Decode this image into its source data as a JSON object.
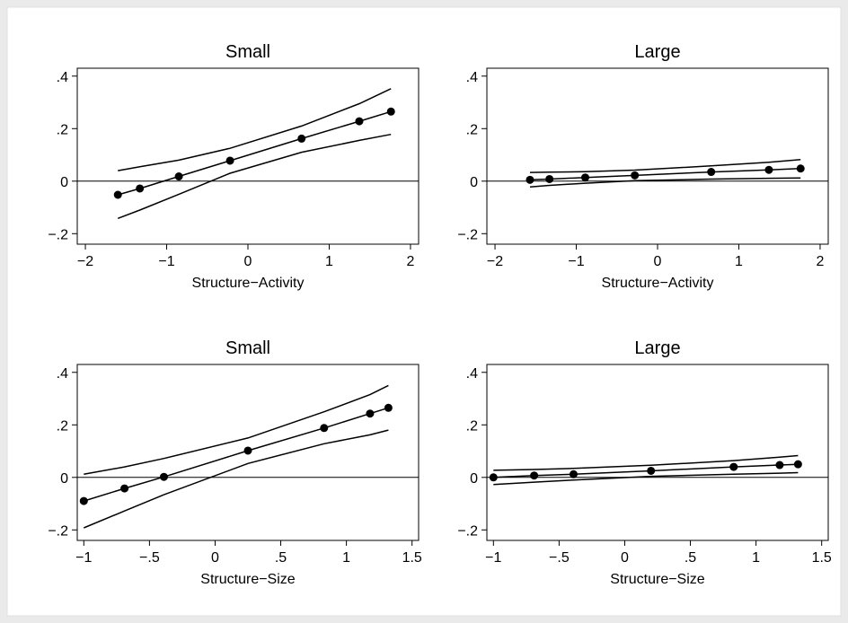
{
  "colors": {
    "figure_background": "#eaeaea",
    "plot_background": "#ffffff",
    "ink": "#000000"
  },
  "chart_data": [
    {
      "type": "line",
      "title": "Small",
      "xlabel": "Structure−Activity",
      "ylabel": "",
      "xlim": [
        -2.1,
        2.1
      ],
      "ylim": [
        -0.24,
        0.43
      ],
      "x_ticks": [
        -2,
        -1,
        0,
        1,
        2
      ],
      "x_tick_labels": [
        "−2",
        "−1",
        "0",
        "1",
        "2"
      ],
      "y_ticks": [
        -0.2,
        0,
        0.2,
        0.4
      ],
      "y_tick_labels": [
        "−.2",
        "0",
        ".2",
        ".4"
      ],
      "reference_line_y": 0,
      "grid": false,
      "series": [
        {
          "role": "estimate",
          "markers": true,
          "x": [
            -1.6,
            -1.33,
            -0.85,
            -0.22,
            0.66,
            1.37,
            1.76
          ],
          "y": [
            -0.052,
            -0.028,
            0.018,
            0.078,
            0.162,
            0.228,
            0.265
          ]
        },
        {
          "role": "upper",
          "markers": false,
          "x": [
            -1.6,
            -1.33,
            -0.85,
            -0.22,
            0.66,
            1.37,
            1.76
          ],
          "y": [
            0.04,
            0.055,
            0.08,
            0.125,
            0.21,
            0.295,
            0.352
          ]
        },
        {
          "role": "lower",
          "markers": false,
          "x": [
            -1.6,
            -1.33,
            -0.85,
            -0.22,
            0.66,
            1.37,
            1.76
          ],
          "y": [
            -0.142,
            -0.11,
            -0.05,
            0.03,
            0.11,
            0.155,
            0.178
          ]
        }
      ]
    },
    {
      "type": "line",
      "title": "Large",
      "xlabel": "Structure−Activity",
      "ylabel": "",
      "xlim": [
        -2.1,
        2.1
      ],
      "ylim": [
        -0.24,
        0.43
      ],
      "x_ticks": [
        -2,
        -1,
        0,
        1,
        2
      ],
      "x_tick_labels": [
        "−2",
        "−1",
        "0",
        "1",
        "2"
      ],
      "y_ticks": [
        -0.2,
        0,
        0.2,
        0.4
      ],
      "y_tick_labels": [
        "−.2",
        "0",
        ".2",
        ".4"
      ],
      "reference_line_y": 0,
      "grid": false,
      "series": [
        {
          "role": "estimate",
          "markers": true,
          "x": [
            -1.57,
            -1.33,
            -0.89,
            -0.28,
            0.66,
            1.37,
            1.76
          ],
          "y": [
            0.005,
            0.008,
            0.014,
            0.022,
            0.035,
            0.043,
            0.048
          ]
        },
        {
          "role": "upper",
          "markers": false,
          "x": [
            -1.57,
            -1.33,
            -0.89,
            -0.28,
            0.66,
            1.37,
            1.76
          ],
          "y": [
            0.033,
            0.034,
            0.036,
            0.042,
            0.058,
            0.072,
            0.082
          ]
        },
        {
          "role": "lower",
          "markers": false,
          "x": [
            -1.57,
            -1.33,
            -0.89,
            -0.28,
            0.66,
            1.37,
            1.76
          ],
          "y": [
            -0.022,
            -0.016,
            -0.008,
            0.002,
            0.008,
            0.011,
            0.012
          ]
        }
      ]
    },
    {
      "type": "line",
      "title": "Small",
      "xlabel": "Structure−Size",
      "ylabel": "",
      "xlim": [
        -1.05,
        1.55
      ],
      "ylim": [
        -0.24,
        0.43
      ],
      "x_ticks": [
        -1,
        -0.5,
        0,
        0.5,
        1,
        1.5
      ],
      "x_tick_labels": [
        "−1",
        "−.5",
        "0",
        ".5",
        "1",
        "1.5"
      ],
      "y_ticks": [
        -0.2,
        0,
        0.2,
        0.4
      ],
      "y_tick_labels": [
        "−.2",
        "0",
        ".2",
        ".4"
      ],
      "reference_line_y": 0,
      "grid": false,
      "series": [
        {
          "role": "estimate",
          "markers": true,
          "x": [
            -1.0,
            -0.69,
            -0.39,
            0.25,
            0.83,
            1.18,
            1.32
          ],
          "y": [
            -0.09,
            -0.042,
            0.002,
            0.102,
            0.188,
            0.243,
            0.265
          ]
        },
        {
          "role": "upper",
          "markers": false,
          "x": [
            -1.0,
            -0.69,
            -0.39,
            0.25,
            0.83,
            1.18,
            1.32
          ],
          "y": [
            0.012,
            0.04,
            0.072,
            0.15,
            0.25,
            0.315,
            0.35
          ]
        },
        {
          "role": "lower",
          "markers": false,
          "x": [
            -1.0,
            -0.69,
            -0.39,
            0.25,
            0.83,
            1.18,
            1.32
          ],
          "y": [
            -0.192,
            -0.128,
            -0.066,
            0.053,
            0.128,
            0.162,
            0.18
          ]
        }
      ]
    },
    {
      "type": "line",
      "title": "Large",
      "xlabel": "Structure−Size",
      "ylabel": "",
      "xlim": [
        -1.05,
        1.55
      ],
      "ylim": [
        -0.24,
        0.43
      ],
      "x_ticks": [
        -1,
        -0.5,
        0,
        0.5,
        1,
        1.5
      ],
      "x_tick_labels": [
        "−1",
        "−.5",
        "0",
        ".5",
        "1",
        "1.5"
      ],
      "y_ticks": [
        -0.2,
        0,
        0.2,
        0.4
      ],
      "y_tick_labels": [
        "−.2",
        "0",
        ".2",
        ".4"
      ],
      "reference_line_y": 0,
      "grid": false,
      "series": [
        {
          "role": "estimate",
          "markers": true,
          "x": [
            -1.0,
            -0.69,
            -0.39,
            0.2,
            0.83,
            1.18,
            1.32
          ],
          "y": [
            0.0,
            0.007,
            0.012,
            0.025,
            0.04,
            0.047,
            0.05
          ]
        },
        {
          "role": "upper",
          "markers": false,
          "x": [
            -1.0,
            -0.69,
            -0.39,
            0.2,
            0.83,
            1.18,
            1.32
          ],
          "y": [
            0.027,
            0.03,
            0.034,
            0.046,
            0.064,
            0.077,
            0.083
          ]
        },
        {
          "role": "lower",
          "markers": false,
          "x": [
            -1.0,
            -0.69,
            -0.39,
            0.2,
            0.83,
            1.18,
            1.32
          ],
          "y": [
            -0.027,
            -0.018,
            -0.01,
            0.004,
            0.012,
            0.016,
            0.018
          ]
        }
      ]
    }
  ]
}
